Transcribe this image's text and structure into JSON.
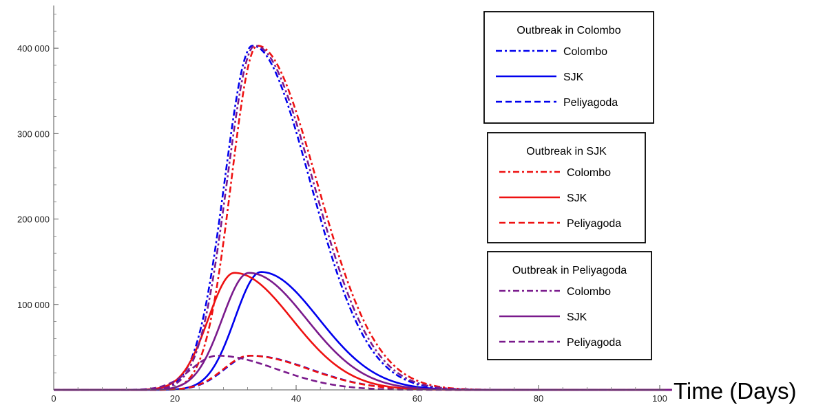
{
  "chart_data": {
    "type": "line",
    "title": "",
    "xlabel": "Time (Days)",
    "ylabel": "",
    "xlim": [
      0,
      102
    ],
    "ylim": [
      0,
      450000
    ],
    "xticks": [
      0,
      20,
      40,
      60,
      80,
      100
    ],
    "xtick_labels": [
      "0",
      "20",
      "40",
      "60",
      "80",
      "100"
    ],
    "yticks": [
      100000,
      200000,
      300000,
      400000
    ],
    "ytick_labels": [
      "100 000",
      "200 000",
      "300 000",
      "400 000"
    ],
    "grid": false,
    "legend_position": "right",
    "colors": {
      "colombo_outbreak": "#0000ee",
      "sjk_outbreak": "#ee1111",
      "peliyagoda_outbreak": "#7a1a8c"
    },
    "legend_groups": [
      {
        "title": "Outbreak in Colombo",
        "color_key": "colombo_outbreak",
        "entries": [
          {
            "label": "Colombo",
            "dash": "dashdot"
          },
          {
            "label": "SJK",
            "dash": "solid"
          },
          {
            "label": "Peliyagoda",
            "dash": "dashed"
          }
        ]
      },
      {
        "title": "Outbreak in SJK",
        "color_key": "sjk_outbreak",
        "entries": [
          {
            "label": "Colombo",
            "dash": "dashdot"
          },
          {
            "label": "SJK",
            "dash": "solid"
          },
          {
            "label": "Peliyagoda",
            "dash": "dashed"
          }
        ]
      },
      {
        "title": "Outbreak in Peliyagoda",
        "color_key": "peliyagoda_outbreak",
        "entries": [
          {
            "label": "Colombo",
            "dash": "dashdot"
          },
          {
            "label": "SJK",
            "dash": "solid"
          },
          {
            "label": "Peliyagoda",
            "dash": "dashed"
          }
        ]
      }
    ],
    "series": [
      {
        "group": 0,
        "color_key": "colombo_outbreak",
        "dash": "dashdot",
        "peak": 403000,
        "peak_day": 32.8,
        "rise": 4.6,
        "decay": 9.5
      },
      {
        "group": 0,
        "color_key": "colombo_outbreak",
        "dash": "solid",
        "peak": 138000,
        "peak_day": 34.2,
        "rise": 4.3,
        "decay": 9.5
      },
      {
        "group": 0,
        "color_key": "colombo_outbreak",
        "dash": "dashed",
        "peak": 40000,
        "peak_day": 32.5,
        "rise": 4.3,
        "decay": 9.8
      },
      {
        "group": 1,
        "color_key": "sjk_outbreak",
        "dash": "dashdot",
        "peak": 403000,
        "peak_day": 33.6,
        "rise": 4.3,
        "decay": 9.8
      },
      {
        "group": 1,
        "color_key": "sjk_outbreak",
        "dash": "solid",
        "peak": 137000,
        "peak_day": 29.8,
        "rise": 4.3,
        "decay": 9.5
      },
      {
        "group": 1,
        "color_key": "sjk_outbreak",
        "dash": "dashed",
        "peak": 40000,
        "peak_day": 32.3,
        "rise": 4.3,
        "decay": 9.8
      },
      {
        "group": 2,
        "color_key": "peliyagoda_outbreak",
        "dash": "dashdot",
        "peak": 403000,
        "peak_day": 33.2,
        "rise": 4.6,
        "decay": 9.6
      },
      {
        "group": 2,
        "color_key": "peliyagoda_outbreak",
        "dash": "solid",
        "peak": 137000,
        "peak_day": 32.2,
        "rise": 4.4,
        "decay": 9.5
      },
      {
        "group": 2,
        "color_key": "peliyagoda_outbreak",
        "dash": "dashed",
        "peak": 40000,
        "peak_day": 27.0,
        "rise": 4.3,
        "decay": 9.8
      }
    ]
  }
}
